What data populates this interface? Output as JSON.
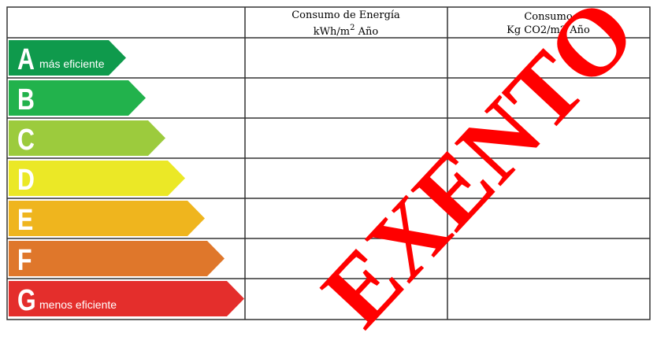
{
  "header": {
    "energy": {
      "line1": "Consumo de Energía",
      "line2": "kWh/m",
      "line2_sup": "2",
      "line2_end": "Año"
    },
    "emissions": {
      "line1": "Consumo",
      "line2": "Kg CO2/m2 Año"
    }
  },
  "rating": {
    "classes": [
      {
        "letter": "A",
        "note": "más eficiente",
        "color": "#0f9a4c"
      },
      {
        "letter": "B",
        "color": "#22b24c"
      },
      {
        "letter": "C",
        "color": "#9ccb3d"
      },
      {
        "letter": "D",
        "color": "#ebe826"
      },
      {
        "letter": "E",
        "color": "#efb51e"
      },
      {
        "letter": "F",
        "color": "#df772b"
      },
      {
        "letter": "G",
        "note": "menos eficiente",
        "color": "#e42e2c"
      }
    ]
  },
  "stamp": "EXENTO"
}
